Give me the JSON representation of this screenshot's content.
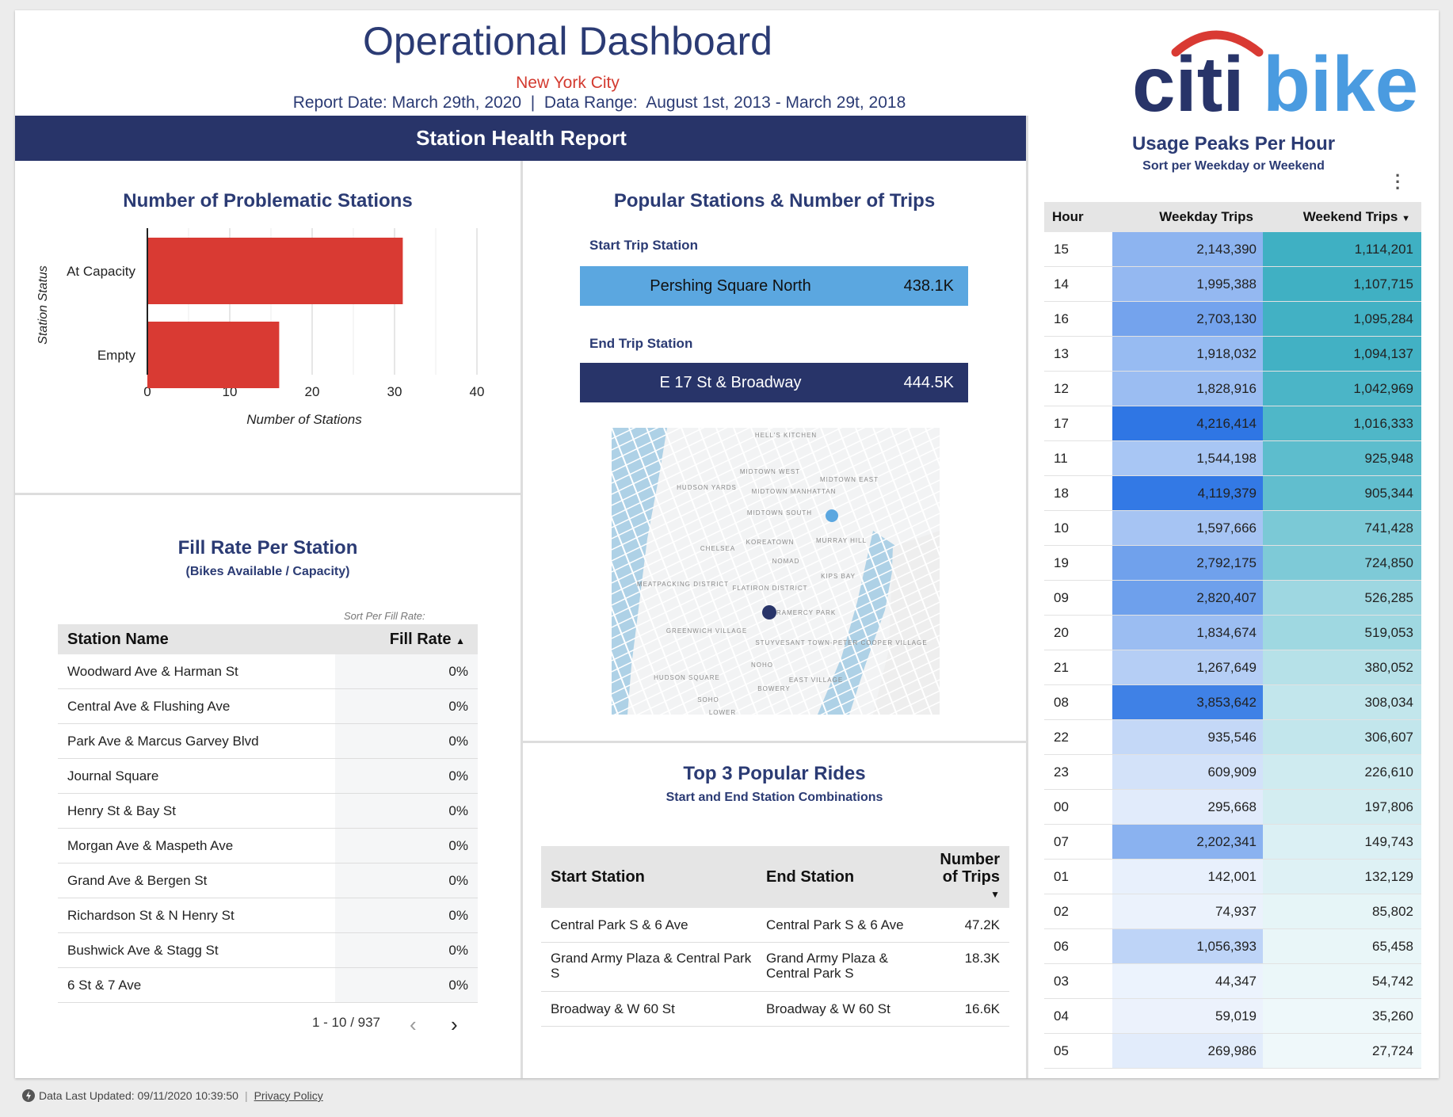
{
  "header": {
    "title": "Operational Dashboard",
    "city": "New York City",
    "report_line": "Report Date: March 29th, 2020  |  Data Range:  August 1st, 2013 - March 29t, 2018",
    "logo_text_citi": "citi",
    "logo_text_bike": "bike",
    "band_title": "Station Health Report"
  },
  "problematic": {
    "title": "Number of Problematic Stations",
    "chart_data": {
      "type": "bar",
      "orientation": "horizontal",
      "categories": [
        "At Capacity",
        "Empty"
      ],
      "values": [
        31,
        16
      ],
      "xlabel": "Number of Stations",
      "ylabel": "Station Status",
      "xlim": [
        0,
        40
      ],
      "xticks": [
        0,
        10,
        20,
        30,
        40
      ],
      "color": "#d93a33",
      "grid": true
    }
  },
  "fill_rate": {
    "title": "Fill Rate Per Station",
    "subtitle": "(Bikes Available / Capacity)",
    "sort_label": "Sort Per Fill Rate:",
    "col_station": "Station Name",
    "col_rate": "Fill Rate",
    "rows": [
      {
        "name": "Woodward Ave & Harman St",
        "rate": "0%"
      },
      {
        "name": "Central Ave & Flushing Ave",
        "rate": "0%"
      },
      {
        "name": "Park Ave & Marcus Garvey Blvd",
        "rate": "0%"
      },
      {
        "name": "Journal Square",
        "rate": "0%"
      },
      {
        "name": "Henry St & Bay St",
        "rate": "0%"
      },
      {
        "name": "Morgan Ave & Maspeth Ave",
        "rate": "0%"
      },
      {
        "name": "Grand Ave & Bergen St",
        "rate": "0%"
      },
      {
        "name": "Richardson St & N Henry St",
        "rate": "0%"
      },
      {
        "name": "Bushwick Ave & Stagg St",
        "rate": "0%"
      },
      {
        "name": "6 St & 7 Ave",
        "rate": "0%"
      }
    ],
    "pager": "1 - 10 / 937"
  },
  "popular": {
    "title": "Popular Stations & Number of Trips",
    "start_label": "Start Trip Station",
    "start_name": "Pershing Square North",
    "start_value": "438.1K",
    "start_color": "#5ba7e0",
    "end_label": "End Trip Station",
    "end_name": "E 17 St & Broadway",
    "end_value": "444.5K",
    "end_color": "#283469",
    "map_labels": [
      "HELL'S KITCHEN",
      "MIDTOWN WEST",
      "MIDTOWN EAST",
      "HUDSON YARDS",
      "MIDTOWN MANHATTAN",
      "MIDTOWN SOUTH",
      "CHELSEA",
      "KOREATOWN",
      "MURRAY HILL",
      "NOMAD",
      "KIPS BAY",
      "MEATPACKING DISTRICT",
      "FLATIRON DISTRICT",
      "GRAMERCY PARK",
      "GREENWICH VILLAGE",
      "STUYVESANT TOWN-PETER COOPER VILLAGE",
      "NOHO",
      "HUDSON SQUARE",
      "EAST VILLAGE",
      "BOWERY",
      "SOHO",
      "LOWER"
    ]
  },
  "rides": {
    "title": "Top 3 Popular Rides",
    "subtitle": "Start and End Station Combinations",
    "col_start": "Start Station",
    "col_end": "End Station",
    "col_trips": "Number of Trips",
    "rows": [
      {
        "start": "Central Park S & 6 Ave",
        "end": "Central Park S & 6 Ave",
        "trips": "47.2K"
      },
      {
        "start": "Grand Army Plaza & Central Park S",
        "end": "Grand Army Plaza & Central Park S",
        "trips": "18.3K"
      },
      {
        "start": "Broadway & W 60 St",
        "end": "Broadway & W 60 St",
        "trips": "16.6K"
      }
    ]
  },
  "usage": {
    "title": "Usage Peaks Per Hour",
    "subtitle": "Sort per Weekday or Weekend",
    "col_hour": "Hour",
    "col_weekday": "Weekday Trips",
    "col_weekend": "Weekend Trips",
    "rows": [
      {
        "hour": "15",
        "weekday": "2,143,390",
        "weekend": "1,114,201",
        "wd": 2143390,
        "we": 1114201
      },
      {
        "hour": "14",
        "weekday": "1,995,388",
        "weekend": "1,107,715",
        "wd": 1995388,
        "we": 1107715
      },
      {
        "hour": "16",
        "weekday": "2,703,130",
        "weekend": "1,095,284",
        "wd": 2703130,
        "we": 1095284
      },
      {
        "hour": "13",
        "weekday": "1,918,032",
        "weekend": "1,094,137",
        "wd": 1918032,
        "we": 1094137
      },
      {
        "hour": "12",
        "weekday": "1,828,916",
        "weekend": "1,042,969",
        "wd": 1828916,
        "we": 1042969
      },
      {
        "hour": "17",
        "weekday": "4,216,414",
        "weekend": "1,016,333",
        "wd": 4216414,
        "we": 1016333
      },
      {
        "hour": "11",
        "weekday": "1,544,198",
        "weekend": "925,948",
        "wd": 1544198,
        "we": 925948
      },
      {
        "hour": "18",
        "weekday": "4,119,379",
        "weekend": "905,344",
        "wd": 4119379,
        "we": 905344
      },
      {
        "hour": "10",
        "weekday": "1,597,666",
        "weekend": "741,428",
        "wd": 1597666,
        "we": 741428
      },
      {
        "hour": "19",
        "weekday": "2,792,175",
        "weekend": "724,850",
        "wd": 2792175,
        "we": 724850
      },
      {
        "hour": "09",
        "weekday": "2,820,407",
        "weekend": "526,285",
        "wd": 2820407,
        "we": 526285
      },
      {
        "hour": "20",
        "weekday": "1,834,674",
        "weekend": "519,053",
        "wd": 1834674,
        "we": 519053
      },
      {
        "hour": "21",
        "weekday": "1,267,649",
        "weekend": "380,052",
        "wd": 1267649,
        "we": 380052
      },
      {
        "hour": "08",
        "weekday": "3,853,642",
        "weekend": "308,034",
        "wd": 3853642,
        "we": 308034
      },
      {
        "hour": "22",
        "weekday": "935,546",
        "weekend": "306,607",
        "wd": 935546,
        "we": 306607
      },
      {
        "hour": "23",
        "weekday": "609,909",
        "weekend": "226,610",
        "wd": 609909,
        "we": 226610
      },
      {
        "hour": "00",
        "weekday": "295,668",
        "weekend": "197,806",
        "wd": 295668,
        "we": 197806
      },
      {
        "hour": "07",
        "weekday": "2,202,341",
        "weekend": "149,743",
        "wd": 2202341,
        "we": 149743
      },
      {
        "hour": "01",
        "weekday": "142,001",
        "weekend": "132,129",
        "wd": 142001,
        "we": 132129
      },
      {
        "hour": "02",
        "weekday": "74,937",
        "weekend": "85,802",
        "wd": 74937,
        "we": 85802
      },
      {
        "hour": "06",
        "weekday": "1,056,393",
        "weekend": "65,458",
        "wd": 1056393,
        "we": 65458
      },
      {
        "hour": "03",
        "weekday": "44,347",
        "weekend": "54,742",
        "wd": 44347,
        "we": 54742
      },
      {
        "hour": "04",
        "weekday": "59,019",
        "weekend": "35,260",
        "wd": 59019,
        "we": 35260
      },
      {
        "hour": "05",
        "weekday": "269,986",
        "weekend": "27,724",
        "wd": 269986,
        "we": 27724
      }
    ],
    "weekday_color": "#2f76e4",
    "weekend_color": "#3fb0c3"
  },
  "footer": {
    "updated": "Data Last Updated: 09/11/2020 10:39:50",
    "privacy": "Privacy Policy"
  }
}
